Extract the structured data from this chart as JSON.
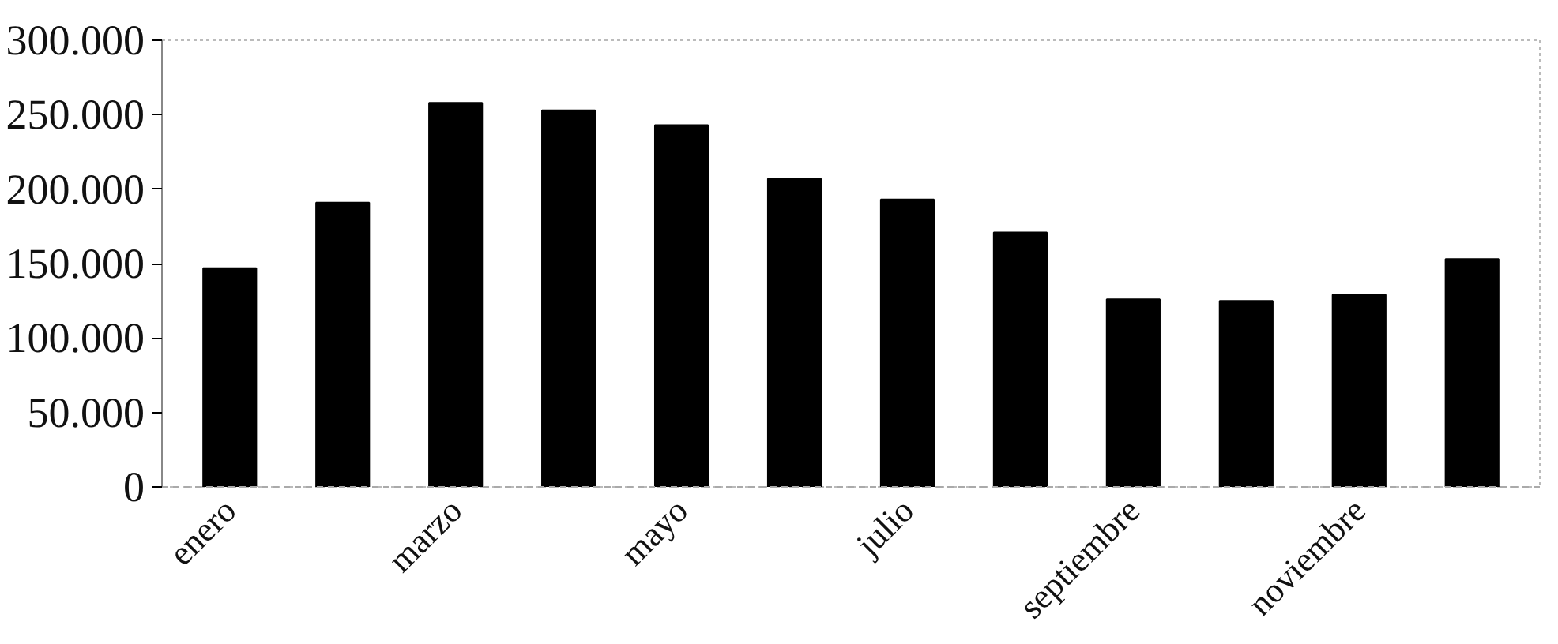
{
  "chart_data": {
    "type": "bar",
    "categories": [
      "enero",
      null,
      "marzo",
      null,
      "mayo",
      null,
      "julio",
      null,
      "septiembre",
      null,
      "noviembre",
      null
    ],
    "values": [
      147000,
      191000,
      258000,
      253000,
      243000,
      207000,
      193000,
      171000,
      126000,
      125000,
      129000,
      153000
    ],
    "color": "#000000",
    "ylim": [
      0,
      300000
    ],
    "yticks": [
      {
        "value": 0,
        "label": "0"
      },
      {
        "value": 50000,
        "label": "50.000"
      },
      {
        "value": 100000,
        "label": "100.000"
      },
      {
        "value": 150000,
        "label": "150.000"
      },
      {
        "value": 200000,
        "label": "200.000"
      },
      {
        "value": 250000,
        "label": "250.000"
      },
      {
        "value": 300000,
        "label": "300.000"
      }
    ],
    "grid": false
  }
}
